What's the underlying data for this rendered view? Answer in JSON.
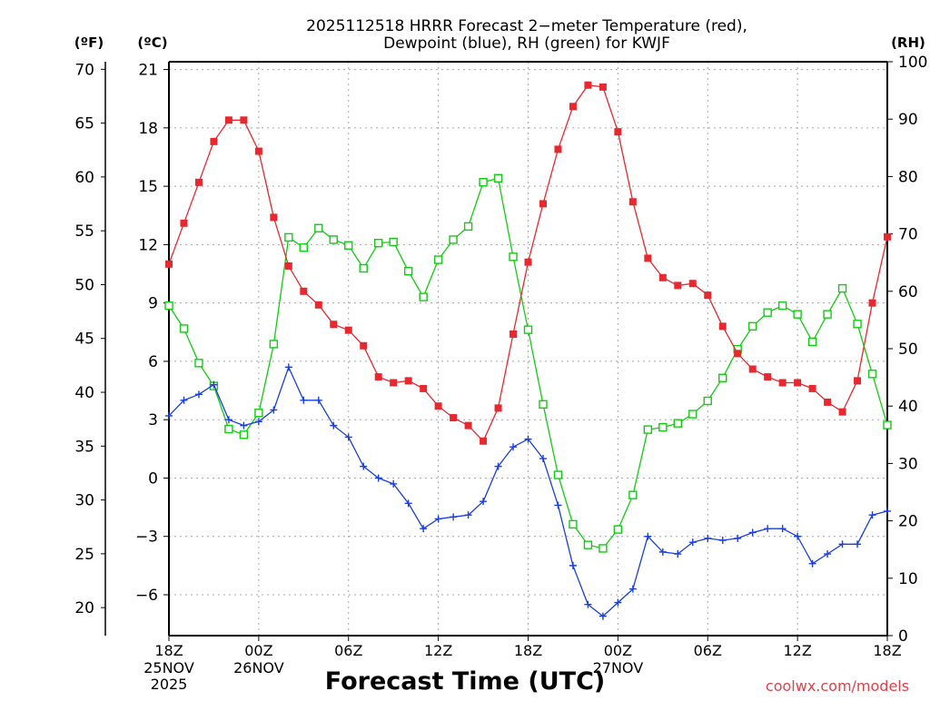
{
  "colors": {
    "temperature": "#e8282f",
    "dewpoint": "#1a3fe0",
    "rh": "#11cc11",
    "grid": "#a8a8a8",
    "text": "#000000",
    "credit": "#e0404a"
  },
  "credit": "coolwx.com/models",
  "chart_data": {
    "type": "line",
    "title": "2025112518 HRRR Forecast 2−meter Temperature (red),",
    "subtitle": "Dewpoint (blue), RH (green) for KWJF",
    "xlabel": "Forecast Time (UTC)",
    "axes": {
      "fahrenheit": {
        "label": "(ºF)",
        "ticks": [
          70,
          65,
          60,
          55,
          50,
          45,
          40,
          35,
          30,
          25,
          20
        ],
        "range": [
          17.4,
          70.7
        ]
      },
      "celsius": {
        "label": "(ºC)",
        "ticks": [
          "21",
          "18",
          "15",
          "12",
          "9",
          "6",
          "3",
          "0",
          "−3",
          "−6"
        ],
        "range": [
          -8.1,
          21.4
        ]
      },
      "rh": {
        "label": "(RH)",
        "ticks": [
          "100",
          "90",
          "80",
          "70",
          "60",
          "50",
          "40",
          "30",
          "20",
          "10",
          "0"
        ],
        "range": [
          0,
          100
        ]
      }
    },
    "x_ticks": [
      {
        "hour": 0,
        "label1": "18Z",
        "label2": "25NOV",
        "label3": "2025"
      },
      {
        "hour": 6,
        "label1": "00Z",
        "label2": "26NOV",
        "label3": ""
      },
      {
        "hour": 12,
        "label1": "06Z",
        "label2": "",
        "label3": ""
      },
      {
        "hour": 18,
        "label1": "12Z",
        "label2": "",
        "label3": ""
      },
      {
        "hour": 24,
        "label1": "18Z",
        "label2": "",
        "label3": ""
      },
      {
        "hour": 30,
        "label1": "00Z",
        "label2": "27NOV",
        "label3": ""
      },
      {
        "hour": 36,
        "label1": "06Z",
        "label2": "",
        "label3": ""
      },
      {
        "hour": 42,
        "label1": "12Z",
        "label2": "",
        "label3": ""
      },
      {
        "hour": 48,
        "label1": "18Z",
        "label2": "",
        "label3": ""
      }
    ],
    "x_range": [
      0,
      48
    ],
    "hours": [
      0,
      1,
      2,
      3,
      4,
      5,
      6,
      7,
      8,
      9,
      10,
      11,
      12,
      13,
      14,
      15,
      16,
      17,
      18,
      19,
      20,
      21,
      22,
      23,
      24,
      25,
      26,
      27,
      28,
      29,
      30,
      31,
      32,
      33,
      34,
      35,
      36,
      37,
      38,
      39,
      40,
      41,
      42,
      43,
      44,
      45,
      46,
      47,
      48
    ],
    "series": [
      {
        "name": "Temperature",
        "unit": "C",
        "axis": "celsius",
        "marker": "filled-square",
        "values": [
          11.0,
          13.1,
          15.2,
          17.3,
          18.4,
          18.4,
          16.8,
          13.4,
          10.9,
          9.6,
          8.9,
          7.9,
          7.6,
          6.8,
          5.2,
          4.9,
          5.0,
          4.6,
          3.7,
          3.1,
          2.7,
          1.9,
          3.6,
          7.4,
          11.1,
          14.1,
          16.9,
          19.1,
          20.2,
          20.1,
          17.8,
          14.2,
          11.3,
          10.3,
          9.9,
          10.0,
          9.4,
          7.8,
          6.4,
          5.6,
          5.2,
          4.9,
          4.9,
          4.6,
          3.9,
          3.4,
          5.0,
          9.0,
          12.4
        ]
      },
      {
        "name": "Dewpoint",
        "unit": "C",
        "axis": "celsius",
        "marker": "plus",
        "values": [
          3.2,
          4.0,
          4.3,
          4.8,
          3.0,
          2.7,
          2.9,
          3.5,
          5.7,
          4.0,
          4.0,
          2.7,
          2.1,
          0.6,
          0.0,
          -0.3,
          -1.3,
          -2.6,
          -2.1,
          -2.0,
          -1.9,
          -1.2,
          0.6,
          1.6,
          2.0,
          1.0,
          -1.4,
          -4.5,
          -6.5,
          -7.1,
          -6.4,
          -5.7,
          -3.0,
          -3.8,
          -3.9,
          -3.3,
          -3.1,
          -3.2,
          -3.1,
          -2.8,
          -2.6,
          -2.6,
          -3.0,
          -4.4,
          -3.9,
          -3.4,
          -3.4,
          -1.9,
          -1.7
        ]
      },
      {
        "name": "RH",
        "unit": "%",
        "axis": "rh",
        "marker": "open-square",
        "values": [
          57.5,
          53.5,
          47.5,
          43.5,
          36.0,
          35.0,
          38.8,
          50.8,
          69.4,
          67.6,
          71.0,
          69.0,
          68.0,
          64.0,
          68.4,
          68.6,
          63.5,
          59.0,
          65.5,
          69.0,
          71.3,
          79.0,
          79.7,
          66.0,
          53.3,
          40.3,
          28.0,
          19.4,
          15.8,
          15.2,
          18.5,
          24.5,
          35.9,
          36.3,
          37.0,
          38.6,
          40.9,
          44.9,
          49.9,
          53.9,
          56.3,
          57.5,
          56.0,
          51.2,
          56.0,
          60.5,
          54.3,
          45.6,
          36.7
        ]
      }
    ]
  }
}
